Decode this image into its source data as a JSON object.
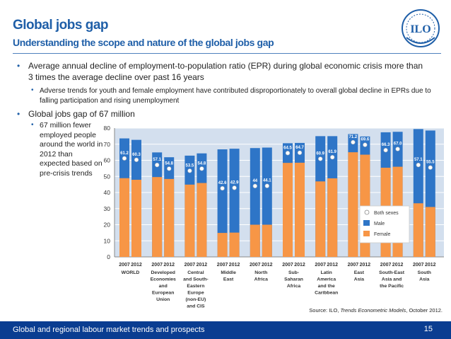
{
  "slide": {
    "title": "Global jobs gap",
    "subtitle": "Understanding the scope and nature of the global jobs gap",
    "bullet1": "Average annual decline of employment-to-population ratio (EPR) during global economic crisis more than 3 times the average decline over past 16 years",
    "bullet1_sub": "Adverse trends for youth and female employment have contributed disproportionately to overall global decline in EPRs due to falling participation and rising unemployment",
    "bullet2": "Global jobs gap of 67 million",
    "bullet2_sub": "67 million fewer employed people around the world in 2012 than expected based on pre-crisis trends",
    "bullet_glyph": "•",
    "logo_text": "ILO",
    "source_prefix": "Source: ILO, ",
    "source_title": "Trends Econometric Models",
    "source_suffix": ", October 2012.",
    "footer": "Global and regional labour market trends and prospects",
    "page_number": "15"
  },
  "colors": {
    "male": "#2e75c7",
    "female": "#f79646",
    "plot_bg": "#d3dfee",
    "grid": "#ffffff",
    "heading": "#1f5fa8",
    "footer_bg": "#0a3d91"
  },
  "chart_data": {
    "type": "bar",
    "stacked": true,
    "ylim": [
      0,
      80
    ],
    "yticks": [
      0,
      10,
      20,
      30,
      40,
      50,
      60,
      70,
      80
    ],
    "grid": true,
    "legend_position": "right",
    "legend": [
      "Both sexes",
      "Male",
      "Female"
    ],
    "groups": [
      {
        "label": [
          "WORLD"
        ],
        "years": [
          "2007",
          "2012"
        ],
        "male": [
          73.6,
          72.7
        ],
        "female": [
          48.9,
          47.9
        ],
        "both": [
          61.2,
          60.3
        ],
        "both_labels": [
          "61.2",
          "60.3"
        ]
      },
      {
        "label": [
          "Developed",
          "Economies",
          "and",
          "European",
          "Union"
        ],
        "years": [
          "2007",
          "2012"
        ],
        "male": [
          64.9,
          61.9
        ],
        "female": [
          49.6,
          48.4
        ],
        "both": [
          57.1,
          54.8
        ],
        "both_labels": [
          "57.1",
          "54.8"
        ]
      },
      {
        "label": [
          "Central",
          "and South-",
          "Eastern",
          "Europe",
          "(non-EU)",
          "and CIS"
        ],
        "years": [
          "2007",
          "2012"
        ],
        "male": [
          62.9,
          64.3
        ],
        "female": [
          44.9,
          45.9
        ],
        "both": [
          53.5,
          54.8
        ],
        "both_labels": [
          "53.5",
          "54.8"
        ]
      },
      {
        "label": [
          "Middle",
          "East"
        ],
        "years": [
          "2007",
          "2012"
        ],
        "male": [
          66.8,
          67.2
        ],
        "female": [
          14.9,
          15.1
        ],
        "both": [
          42.6,
          42.9
        ],
        "both_labels": [
          "42.6",
          "42.9"
        ]
      },
      {
        "label": [
          "North",
          "Africa"
        ],
        "years": [
          "2007",
          "2012"
        ],
        "male": [
          67.6,
          67.9
        ],
        "female": [
          20.0,
          20.0
        ],
        "both": [
          44.0,
          44.1
        ],
        "both_labels": [
          "44",
          "44.1"
        ]
      },
      {
        "label": [
          "Sub-",
          "Saharan",
          "Africa"
        ],
        "years": [
          "2007",
          "2012"
        ],
        "male": [
          70.6,
          70.8
        ],
        "female": [
          58.4,
          58.5
        ],
        "both": [
          64.5,
          64.7
        ],
        "both_labels": [
          "64.5",
          "64.7"
        ]
      },
      {
        "label": [
          "Latin",
          "America",
          "and the",
          "Caribbean"
        ],
        "years": [
          "2007",
          "2012"
        ],
        "male": [
          75.0,
          75.0
        ],
        "female": [
          46.9,
          48.8
        ],
        "both": [
          60.9,
          61.9
        ],
        "both_labels": [
          "60.9",
          "61.9"
        ]
      },
      {
        "label": [
          "East",
          "Asia"
        ],
        "years": [
          "2007",
          "2012"
        ],
        "male": [
          76.3,
          74.8
        ],
        "female": [
          65.0,
          63.5
        ],
        "both": [
          71.2,
          69.6
        ],
        "both_labels": [
          "71.2",
          "69.6"
        ]
      },
      {
        "label": [
          "South-East",
          "Asia and",
          "the Pacific"
        ],
        "years": [
          "2007",
          "2012"
        ],
        "male": [
          77.4,
          77.7
        ],
        "female": [
          55.4,
          56.0
        ],
        "both": [
          66.3,
          67.0
        ],
        "both_labels": [
          "66.3",
          "67.0"
        ]
      },
      {
        "label": [
          "South",
          "Asia"
        ],
        "years": [
          "2007",
          "2012"
        ],
        "male": [
          79.4,
          78.5
        ],
        "female": [
          33.3,
          31.0
        ],
        "both": [
          57.1,
          55.5
        ],
        "both_labels": [
          "57.1",
          "55.5"
        ]
      }
    ]
  }
}
